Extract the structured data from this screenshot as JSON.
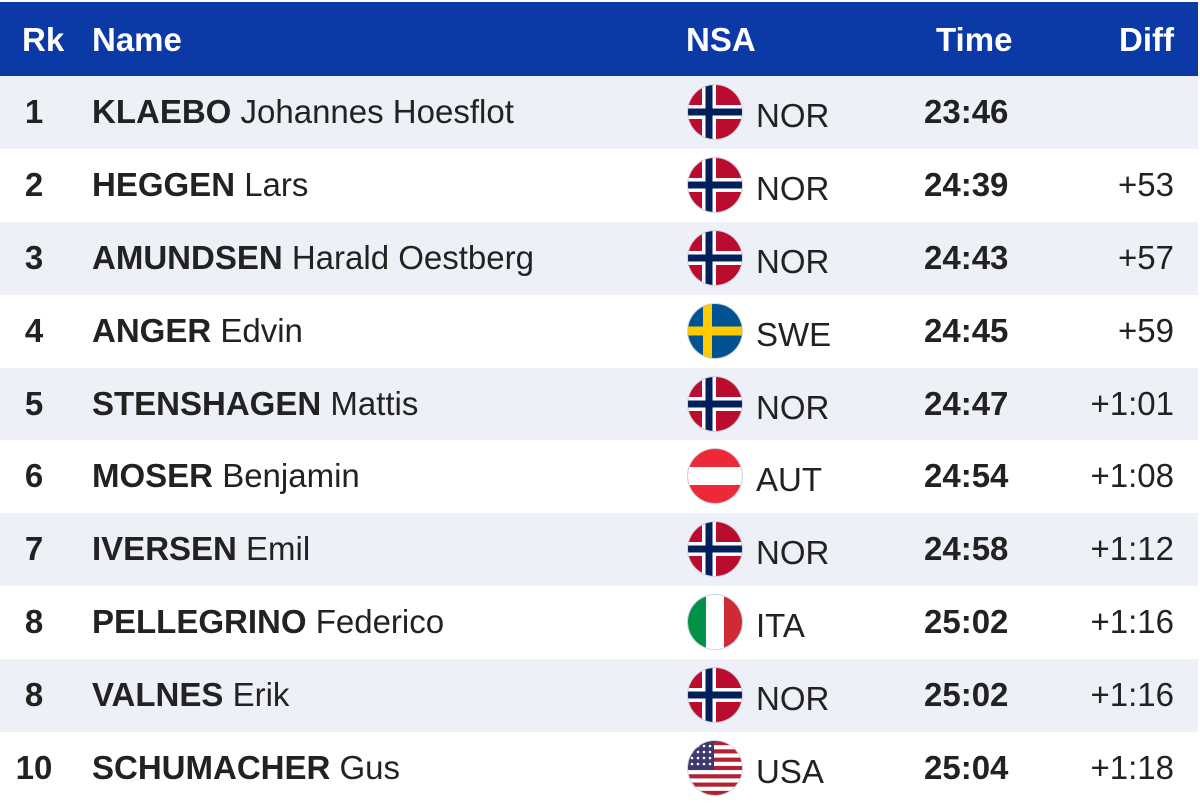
{
  "header": {
    "rank": "Rk",
    "name": "Name",
    "nsa": "NSA",
    "time": "Time",
    "diff": "Diff"
  },
  "rows": [
    {
      "rank": "1",
      "surname": "KLAEBO",
      "given": "Johannes Hoesflot",
      "flag": "norway-flag",
      "nsa": "NOR",
      "time": "23:46",
      "diff": ""
    },
    {
      "rank": "2",
      "surname": "HEGGEN",
      "given": "Lars",
      "flag": "norway-flag",
      "nsa": "NOR",
      "time": "24:39",
      "diff": "+53"
    },
    {
      "rank": "3",
      "surname": "AMUNDSEN",
      "given": "Harald Oestberg",
      "flag": "norway-flag",
      "nsa": "NOR",
      "time": "24:43",
      "diff": "+57"
    },
    {
      "rank": "4",
      "surname": "ANGER",
      "given": "Edvin",
      "flag": "sweden-flag",
      "nsa": "SWE",
      "time": "24:45",
      "diff": "+59"
    },
    {
      "rank": "5",
      "surname": "STENSHAGEN",
      "given": "Mattis",
      "flag": "norway-flag",
      "nsa": "NOR",
      "time": "24:47",
      "diff": "+1:01"
    },
    {
      "rank": "6",
      "surname": "MOSER",
      "given": "Benjamin",
      "flag": "austria-flag",
      "nsa": "AUT",
      "time": "24:54",
      "diff": "+1:08"
    },
    {
      "rank": "7",
      "surname": "IVERSEN",
      "given": "Emil",
      "flag": "norway-flag",
      "nsa": "NOR",
      "time": "24:58",
      "diff": "+1:12"
    },
    {
      "rank": "8",
      "surname": "PELLEGRINO",
      "given": "Federico",
      "flag": "italy-flag",
      "nsa": "ITA",
      "time": "25:02",
      "diff": "+1:16"
    },
    {
      "rank": "8",
      "surname": "VALNES",
      "given": "Erik",
      "flag": "norway-flag",
      "nsa": "NOR",
      "time": "25:02",
      "diff": "+1:16"
    },
    {
      "rank": "10",
      "surname": "SCHUMACHER",
      "given": "Gus",
      "flag": "usa-flag",
      "nsa": "USA",
      "time": "25:04",
      "diff": "+1:18"
    }
  ],
  "colors": {
    "header_bg": "#0b39a6",
    "header_text": "#ffffff",
    "row_alt_bg": "#eef0f7",
    "text": "#222222"
  }
}
